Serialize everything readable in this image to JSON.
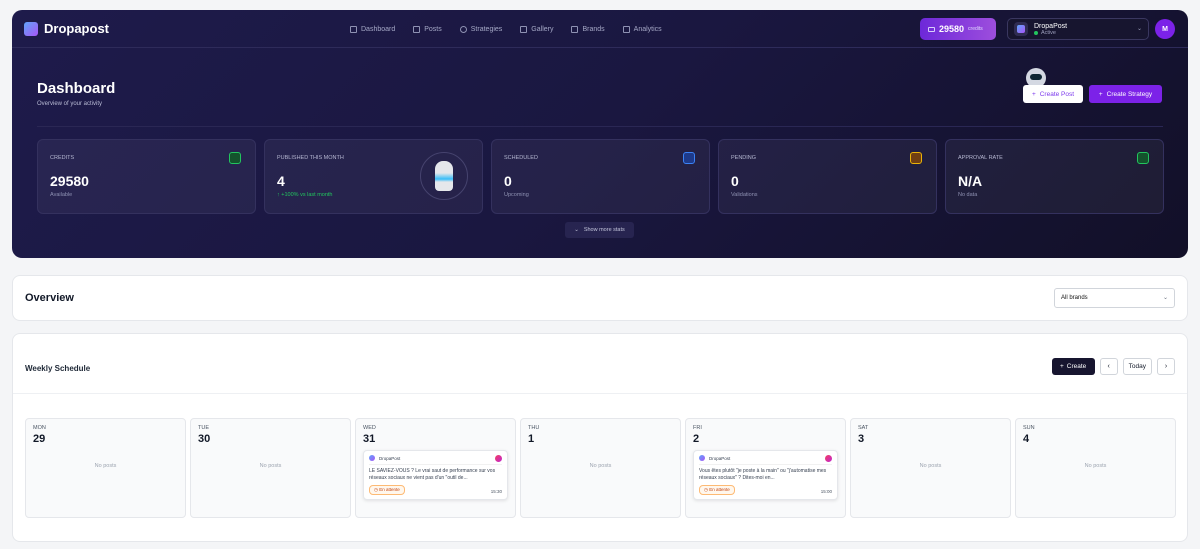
{
  "app": {
    "name": "Dropapost"
  },
  "nav": [
    {
      "label": "Dashboard",
      "icon": "dashboard-icon"
    },
    {
      "label": "Posts",
      "icon": "file-icon"
    },
    {
      "label": "Strategies",
      "icon": "target-icon"
    },
    {
      "label": "Gallery",
      "icon": "image-icon"
    },
    {
      "label": "Brands",
      "icon": "store-icon"
    },
    {
      "label": "Analytics",
      "icon": "chart-icon"
    }
  ],
  "credits": {
    "value": "29580",
    "unit": "credits"
  },
  "brand": {
    "name": "DropaPost",
    "status": "Active"
  },
  "user": {
    "initial": "M"
  },
  "header": {
    "title": "Dashboard",
    "subtitle": "Overview of your activity",
    "create_post": "Create Post",
    "create_strategy": "Create Strategy"
  },
  "stats": [
    {
      "label": "Credits",
      "value": "29580",
      "sub": "Available",
      "color": "#22c55e"
    },
    {
      "label": "Published this month",
      "value": "4",
      "sub": "↑ +100% vs last month"
    },
    {
      "label": "Scheduled",
      "value": "0",
      "sub": "Upcoming",
      "color": "#3b82f6"
    },
    {
      "label": "Pending",
      "value": "0",
      "sub": "Validations",
      "color": "#eab308"
    },
    {
      "label": "Approval rate",
      "value": "N/A",
      "sub": "No data",
      "color": "#22c55e"
    }
  ],
  "show_more": "Show more stats",
  "overview": {
    "title": "Overview",
    "brand_filter": "All brands"
  },
  "schedule": {
    "title": "Weekly Schedule",
    "create": "Create",
    "prev": "‹",
    "today": "Today",
    "next": "›",
    "no_posts": "No posts",
    "days": [
      {
        "name": "MON",
        "num": "29"
      },
      {
        "name": "TUE",
        "num": "30"
      },
      {
        "name": "WED",
        "num": "31",
        "post": {
          "brand": "DropaPost",
          "text": "LE SAVIEZ-VOUS ? Le vrai saut de performance sur vos réseaux sociaux ne vient pas d'un \"outil de...",
          "status": "En attente",
          "time": "15:30"
        }
      },
      {
        "name": "THU",
        "num": "1"
      },
      {
        "name": "FRI",
        "num": "2",
        "post": {
          "brand": "DropaPost",
          "text": "Vous êtes plutôt \"je poste à la main\" ou \"j'automatise mes réseaux sociaux\" ? Dites-moi en...",
          "status": "En attente",
          "time": "15:00"
        }
      },
      {
        "name": "SAT",
        "num": "3"
      },
      {
        "name": "SUN",
        "num": "4"
      }
    ]
  }
}
